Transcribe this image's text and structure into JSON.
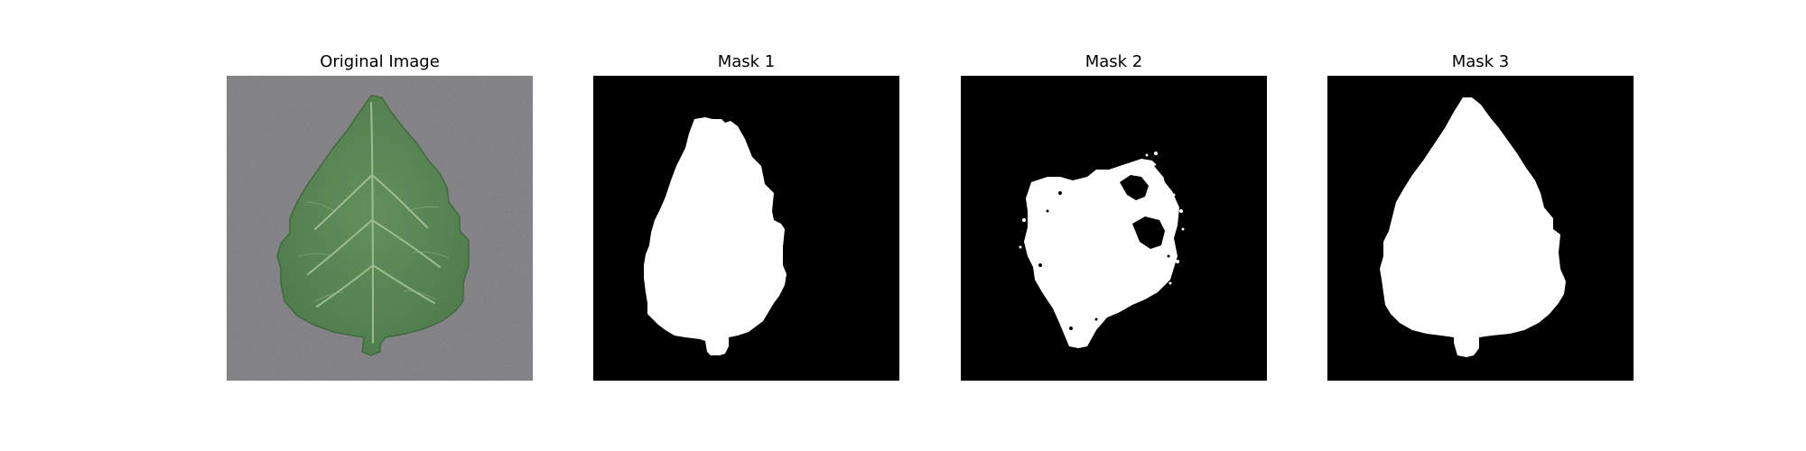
{
  "figure": {
    "panels": [
      {
        "title": "Original Image"
      },
      {
        "title": "Mask 1"
      },
      {
        "title": "Mask 2"
      },
      {
        "title": "Mask 3"
      }
    ]
  },
  "colors": {
    "background_gray": "#7a7a7c",
    "leaf_green": "#5a8a58",
    "leaf_vein": "#9dbb8e",
    "mask_background": "#000000",
    "mask_foreground": "#ffffff"
  }
}
